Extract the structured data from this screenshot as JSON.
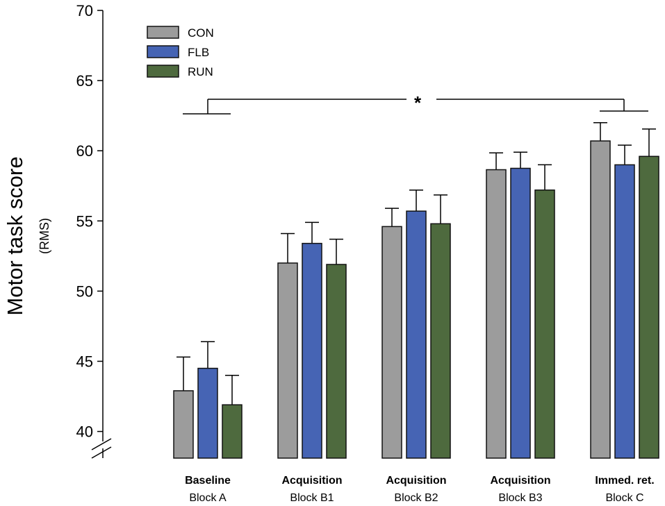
{
  "chart_data": {
    "type": "bar",
    "ylabel": "Motor task score",
    "ylabel_sub": "(RMS)",
    "ylim": [
      40,
      70
    ],
    "yticks": [
      40,
      45,
      50,
      55,
      60,
      65,
      70
    ],
    "axis_break": true,
    "legend_position": "top-left",
    "categories": [
      {
        "bold": "Baseline",
        "sub": "Block A"
      },
      {
        "bold": "Acquisition",
        "sub": "Block B1"
      },
      {
        "bold": "Acquisition",
        "sub": "Block B2"
      },
      {
        "bold": "Acquisition",
        "sub": "Block B3"
      },
      {
        "bold": "Immed. ret.",
        "sub": "Block C"
      }
    ],
    "series": [
      {
        "name": "CON",
        "color": "#9c9c9c",
        "values": [
          42.9,
          52.0,
          54.6,
          58.65,
          60.7
        ],
        "errors": [
          2.4,
          2.1,
          1.3,
          1.2,
          1.3
        ]
      },
      {
        "name": "FLB",
        "color": "#4664b4",
        "values": [
          44.5,
          53.4,
          55.7,
          58.75,
          59.0
        ],
        "errors": [
          1.9,
          1.5,
          1.5,
          1.15,
          1.4
        ]
      },
      {
        "name": "RUN",
        "color": "#4e6a3e",
        "values": [
          41.9,
          51.9,
          54.8,
          57.2,
          59.6
        ],
        "errors": [
          2.1,
          1.8,
          2.05,
          1.8,
          1.95
        ]
      }
    ],
    "annotation": "*"
  }
}
